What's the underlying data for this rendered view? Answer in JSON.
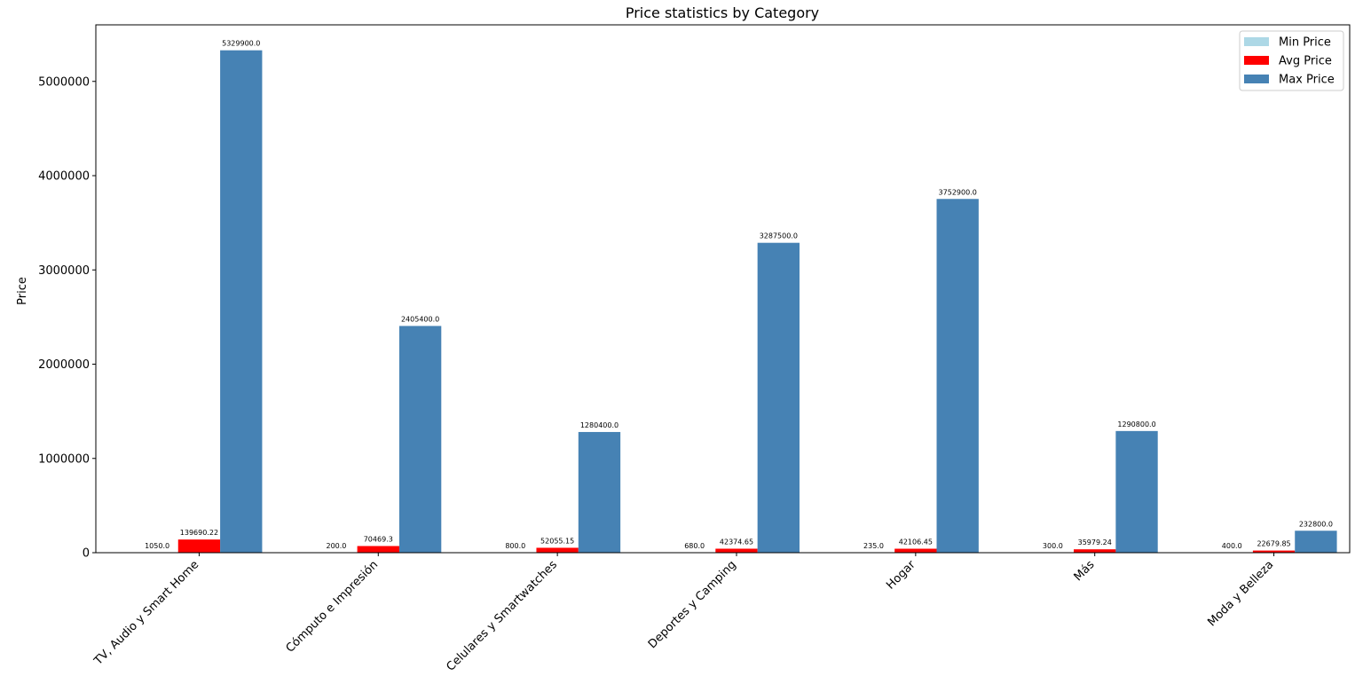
{
  "chart_data": {
    "type": "bar",
    "title": "Price statistics by Category",
    "xlabel": "",
    "ylabel": "Price",
    "ylim": [
      0,
      5600000
    ],
    "yticks": [
      0,
      1000000,
      2000000,
      3000000,
      4000000,
      5000000
    ],
    "ytick_labels": [
      "0",
      "1000000",
      "2000000",
      "3000000",
      "4000000",
      "5000000"
    ],
    "grid": false,
    "legend_position": "top-right",
    "categories": [
      "TV, Audio y Smart Home",
      "Cómputo e Impresión",
      "Celulares y Smartwatches",
      "Deportes y Camping",
      "Hogar",
      "Más",
      "Moda y Belleza"
    ],
    "series": [
      {
        "name": "Min Price",
        "color": "#add8e6",
        "values": [
          1050.0,
          200.0,
          800.0,
          680.0,
          235.0,
          300.0,
          400.0
        ],
        "labels": [
          "1050.0",
          "200.0",
          "800.0",
          "680.0",
          "235.0",
          "300.0",
          "400.0"
        ]
      },
      {
        "name": "Avg Price",
        "color": "#ff0000",
        "values": [
          139690.22,
          70469.3,
          52055.15,
          42374.65,
          42106.45,
          35979.24,
          22679.85
        ],
        "labels": [
          "139690.22",
          "70469.3",
          "52055.15",
          "42374.65",
          "42106.45",
          "35979.24",
          "22679.85"
        ]
      },
      {
        "name": "Max Price",
        "color": "#4682b4",
        "values": [
          5329900.0,
          2405400.0,
          1280400.0,
          3287500.0,
          3752900.0,
          1290800.0,
          232800.0
        ],
        "labels": [
          "5329900.0",
          "2405400.0",
          "1280400.0",
          "3287500.0",
          "3752900.0",
          "1290800.0",
          "232800.0"
        ]
      }
    ]
  }
}
